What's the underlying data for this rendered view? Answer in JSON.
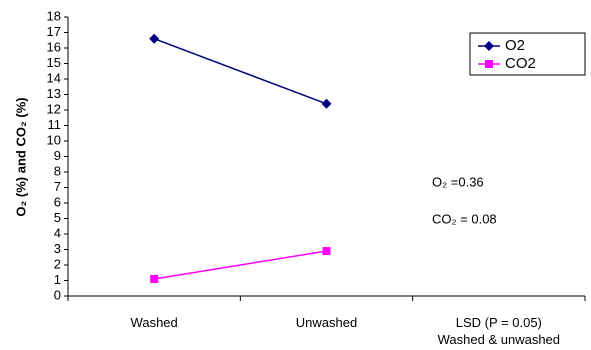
{
  "chart_data": {
    "type": "line",
    "y_label": "O₂ (%) and CO₂ (%)",
    "categories": [
      "Washed",
      "Unwashed",
      "LSD (P = 0.05) Washed & unwashed"
    ],
    "series": [
      {
        "name": "O2",
        "color": "#000080",
        "marker": "diamond",
        "values": [
          16.6,
          12.4,
          null
        ]
      },
      {
        "name": "CO2",
        "color": "#ff00ff",
        "marker": "square",
        "values": [
          1.1,
          2.9,
          null
        ]
      }
    ],
    "annotations": [
      "O₂ =0.36",
      "CO₂ = 0.08"
    ],
    "ylim": [
      0,
      18
    ],
    "yticks": [
      0,
      1,
      2,
      3,
      4,
      5,
      6,
      7,
      8,
      9,
      10,
      11,
      12,
      13,
      14,
      15,
      16,
      17,
      18
    ],
    "legend": "upper right",
    "grid": false
  }
}
